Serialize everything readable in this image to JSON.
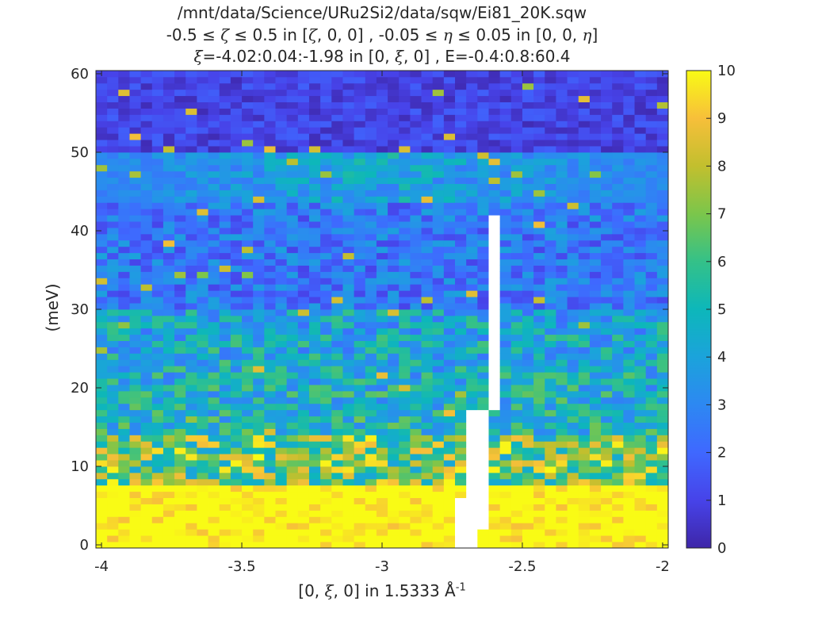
{
  "title": {
    "line1": "/mnt/data/Science/URu2Si2/data/sqw/Ei81_20K.sqw",
    "line2_pre": "-0.5 ≤ ",
    "line2_sym1": "ζ",
    "line2_mid1": " ≤ 0.5 in [",
    "line2_sym2": "ζ",
    "line2_mid2": ", 0, 0] , -0.05 ≤ ",
    "line2_sym3": "η",
    "line2_mid3": " ≤ 0.05 in [0, 0, ",
    "line2_sym4": "η",
    "line2_end": "]",
    "line3_sym": "ξ",
    "line3_rest": "=-4.02:0.04:-1.98 in [0, ",
    "line3_sym2": "ξ",
    "line3_end": ", 0] , E=-0.4:0.8:60.4"
  },
  "xlabel": {
    "pre": "[0, ",
    "sym": "ξ",
    "post": ", 0] in 1.5333 Å",
    "sup": "-1"
  },
  "ylabel": "(meV)",
  "chart_data": {
    "type": "heatmap",
    "x_range": [
      -4.02,
      -1.98
    ],
    "x_step": 0.04,
    "y_range": [
      -0.4,
      60.4
    ],
    "y_step": 0.8,
    "xlim": [
      -4.02,
      -1.98
    ],
    "ylim": [
      -0.4,
      60.4
    ],
    "xticks": [
      -4,
      -3.5,
      -3,
      -2.5,
      -2
    ],
    "xtick_labels": [
      "-4",
      "-3.5",
      "-3",
      "-2.5",
      "-2"
    ],
    "yticks": [
      0,
      10,
      20,
      30,
      40,
      50,
      60
    ],
    "ytick_labels": [
      "0",
      "10",
      "20",
      "30",
      "40",
      "50",
      "60"
    ],
    "clim": [
      0,
      10
    ],
    "colorbar_ticks": [
      0,
      1,
      2,
      3,
      4,
      5,
      6,
      7,
      8,
      9,
      10
    ],
    "colorbar_labels": [
      "0",
      "1",
      "2",
      "3",
      "4",
      "5",
      "6",
      "7",
      "8",
      "9",
      "10"
    ],
    "colormap": "parula",
    "colormap_stops": [
      "#3E26A8",
      "#4743E9",
      "#3F68FF",
      "#2D88F2",
      "#1BA3DB",
      "#0DB7BA",
      "#34C188",
      "#7BC64B",
      "#C2BF2E",
      "#F7BF3A",
      "#F9FB15"
    ],
    "missing_color": "#FFFFFF",
    "features": {
      "high_intensity_band_below_meV": 8,
      "mode_band_near_meV": 47,
      "blank_strips": [
        {
          "x": -2.6,
          "y_from": 17,
          "y_to": 42
        },
        {
          "x": -2.66,
          "y_from": 2,
          "y_to": 17
        },
        {
          "x": -2.7,
          "y_from": -0.4,
          "y_to": 6
        }
      ]
    }
  }
}
